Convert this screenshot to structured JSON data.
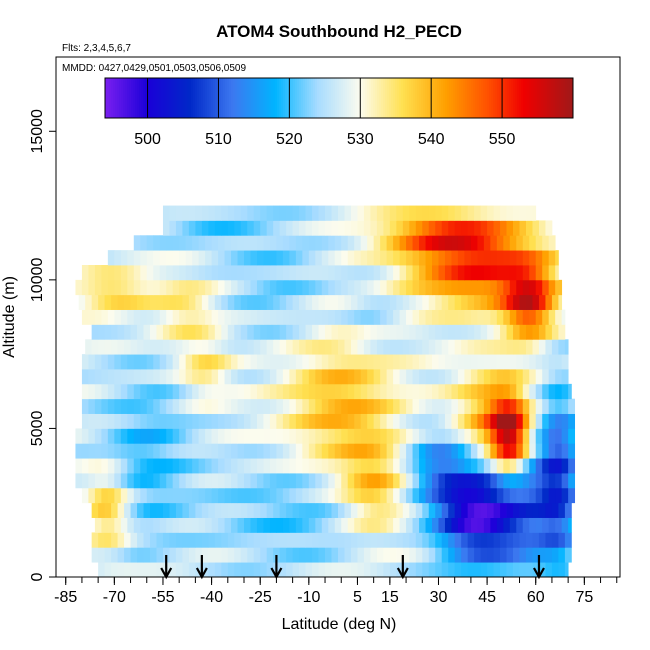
{
  "chart_data": {
    "type": "heatmap",
    "title": "ATOM4 Southbound H2_PECD",
    "annotations": [
      "Flts: 2,3,4,5,6,7",
      "MMDD: 0427,0429,0501,0503,0506,0509"
    ],
    "xlabel": "Latitude (deg N)",
    "ylabel": "Altitude (m)",
    "xlim": [
      -88,
      86
    ],
    "ylim": [
      0,
      17500
    ],
    "x_ticks": [
      -85,
      -70,
      -55,
      -40,
      -25,
      -10,
      5,
      15,
      30,
      45,
      60,
      75
    ],
    "x_minor_step": 5,
    "y_ticks": [
      0,
      5000,
      10000,
      15000
    ],
    "colorbar": {
      "range": [
        494,
        560
      ],
      "ticks": [
        500,
        510,
        520,
        530,
        540,
        550
      ],
      "stops": [
        {
          "v": 494,
          "c": "#7a1ff0"
        },
        {
          "v": 500,
          "c": "#1a00d8"
        },
        {
          "v": 506,
          "c": "#0028c8"
        },
        {
          "v": 512,
          "c": "#3c78f0"
        },
        {
          "v": 518,
          "c": "#00b4ff"
        },
        {
          "v": 524,
          "c": "#a8dcff"
        },
        {
          "v": 530,
          "c": "#fcfcee"
        },
        {
          "v": 536,
          "c": "#ffe050"
        },
        {
          "v": 542,
          "c": "#ffa000"
        },
        {
          "v": 548,
          "c": "#ff5000"
        },
        {
          "v": 553,
          "c": "#f00000"
        },
        {
          "v": 560,
          "c": "#a01818"
        }
      ]
    },
    "flight_arrows_lat": [
      -54,
      -43,
      -20,
      19,
      61
    ],
    "altitude_levels": [
      250,
      750,
      1250,
      1750,
      2250,
      2750,
      3250,
      3750,
      4250,
      4750,
      5250,
      5750,
      6250,
      6750,
      7250,
      7750,
      8250,
      8750,
      9250,
      9750,
      10250,
      10750,
      11250,
      11750,
      12250
    ],
    "latitude_extent": [
      [
        -75,
        70
      ],
      [
        -77,
        71
      ],
      [
        -77,
        71
      ],
      [
        -76,
        71
      ],
      [
        -77,
        71
      ],
      [
        -80,
        72
      ],
      [
        -82,
        72
      ],
      [
        -82,
        72
      ],
      [
        -82,
        72
      ],
      [
        -82,
        72
      ],
      [
        -80,
        72
      ],
      [
        -80,
        72
      ],
      [
        -80,
        71
      ],
      [
        -80,
        70
      ],
      [
        -80,
        70
      ],
      [
        -79,
        70
      ],
      [
        -77,
        69
      ],
      [
        -80,
        69
      ],
      [
        -81,
        68
      ],
      [
        -82,
        68
      ],
      [
        -80,
        67
      ],
      [
        -72,
        67
      ],
      [
        -64,
        66
      ],
      [
        -55,
        65
      ],
      [
        -55,
        60
      ]
    ],
    "field_model": {
      "background": 527,
      "features": [
        {
          "lat": 52,
          "alt": 4700,
          "dlat": 6,
          "dalt": 1300,
          "value": 555
        },
        {
          "lat": 47,
          "alt": 5200,
          "dlat": 12,
          "dalt": 1800,
          "value": 545
        },
        {
          "lat": 42,
          "alt": 10400,
          "dlat": 22,
          "dalt": 1300,
          "value": 550
        },
        {
          "lat": 58,
          "alt": 9200,
          "dlat": 8,
          "dalt": 1200,
          "value": 550
        },
        {
          "lat": 32,
          "alt": 11600,
          "dlat": 20,
          "dalt": 700,
          "value": 545
        },
        {
          "lat": 0,
          "alt": 5800,
          "dlat": 18,
          "dalt": 2500,
          "value": 540
        },
        {
          "lat": 10,
          "alt": 3000,
          "dlat": 10,
          "dalt": 1500,
          "value": 538
        },
        {
          "lat": -72,
          "alt": 2300,
          "dlat": 7,
          "dalt": 1300,
          "value": 540
        },
        {
          "lat": -70,
          "alt": 9600,
          "dlat": 12,
          "dalt": 700,
          "value": 538
        },
        {
          "lat": -48,
          "alt": 9000,
          "dlat": 10,
          "dalt": 1200,
          "value": 535
        },
        {
          "lat": -42,
          "alt": 7000,
          "dlat": 8,
          "dalt": 1000,
          "value": 535
        },
        {
          "lat": 40,
          "alt": 2200,
          "dlat": 12,
          "dalt": 1600,
          "value": 503
        },
        {
          "lat": 55,
          "alt": 2600,
          "dlat": 15,
          "dalt": 2600,
          "value": 510
        },
        {
          "lat": 67,
          "alt": 3500,
          "dlat": 6,
          "dalt": 3000,
          "value": 513
        },
        {
          "lat": -60,
          "alt": 4000,
          "dlat": 14,
          "dalt": 3000,
          "value": 519
        },
        {
          "lat": -15,
          "alt": 2200,
          "dlat": 22,
          "dalt": 1800,
          "value": 520
        },
        {
          "lat": -20,
          "alt": 9800,
          "dlat": 16,
          "dalt": 2200,
          "value": 522
        },
        {
          "lat": 10,
          "alt": 8800,
          "dlat": 10,
          "dalt": 1300,
          "value": 522
        },
        {
          "lat": -40,
          "alt": 11800,
          "dlat": 16,
          "dalt": 900,
          "value": 522
        },
        {
          "lat": 30,
          "alt": 3800,
          "dlat": 10,
          "dalt": 1200,
          "value": 515
        }
      ]
    }
  }
}
